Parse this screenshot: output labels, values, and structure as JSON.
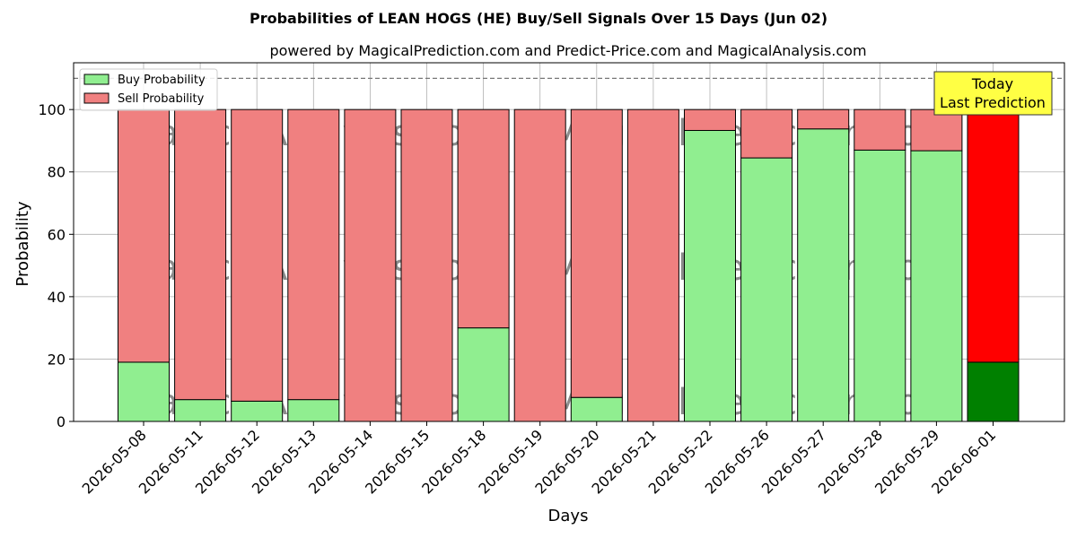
{
  "chart_data": {
    "type": "bar",
    "title": "Probabilities of LEAN HOGS (HE) Buy/Sell Signals Over 15 Days (Jun 02)",
    "subtitle": "powered by MagicalPrediction.com and Predict-Price.com and MagicalAnalysis.com",
    "xlabel": "Days",
    "ylabel": "Probability",
    "ylim": [
      0,
      115
    ],
    "yticks": [
      0,
      20,
      40,
      60,
      80,
      100
    ],
    "grid": true,
    "legend_position": "top-left",
    "reference_line": 110,
    "categories": [
      "2026-05-08",
      "2026-05-11",
      "2026-05-12",
      "2026-05-13",
      "2026-05-14",
      "2026-05-15",
      "2026-05-18",
      "2026-05-19",
      "2026-05-20",
      "2026-05-21",
      "2026-05-22",
      "2026-05-26",
      "2026-05-27",
      "2026-05-28",
      "2026-05-29",
      "2026-06-01"
    ],
    "series": [
      {
        "name": "Buy Probability",
        "color": "#90ee90",
        "values": [
          19,
          7,
          6.5,
          7,
          0,
          0,
          30,
          0,
          7.7,
          0,
          93.3,
          84.5,
          93.8,
          87,
          86.8,
          19
        ]
      },
      {
        "name": "Sell Probability",
        "color": "#f08080",
        "values": [
          81,
          93,
          93.5,
          93,
          100,
          100,
          70,
          100,
          92.3,
          100,
          6.7,
          15.5,
          6.2,
          13,
          13.2,
          81
        ]
      }
    ],
    "today": {
      "index": 15,
      "buy_color": "#008000",
      "sell_color": "#ff0000",
      "label_line1": "Today",
      "label_line2": "Last Prediction",
      "label_bg": "#ffff44"
    },
    "watermarks": [
      "MagicalAnalysis.com",
      "MagicalPrediction.com"
    ]
  }
}
